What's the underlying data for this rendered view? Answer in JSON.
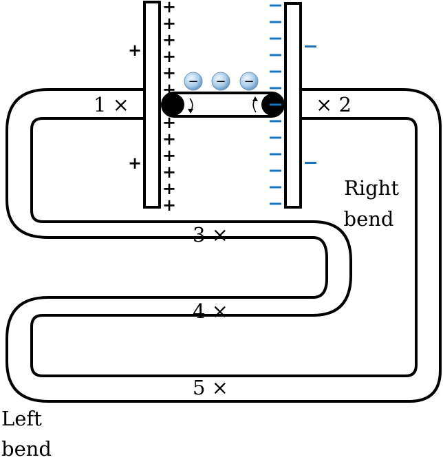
{
  "labels": {
    "pos1": "1 ×",
    "pos2": "× 2",
    "pos3": "3 ×",
    "pos4": "4 ×",
    "pos5": "5 ×",
    "right_bend_line1": "Right",
    "right_bend_line2": "bend",
    "left_bend_line1": "Left",
    "left_bend_line2": "bend"
  },
  "charges": {
    "positive_sign": "+",
    "negative_sign": "−",
    "electron_sign": "−"
  },
  "colors": {
    "positive": "#cc1f4a",
    "negative": "#1d73b5",
    "outline": "#000000",
    "electron_fill": "#a9cdea"
  }
}
